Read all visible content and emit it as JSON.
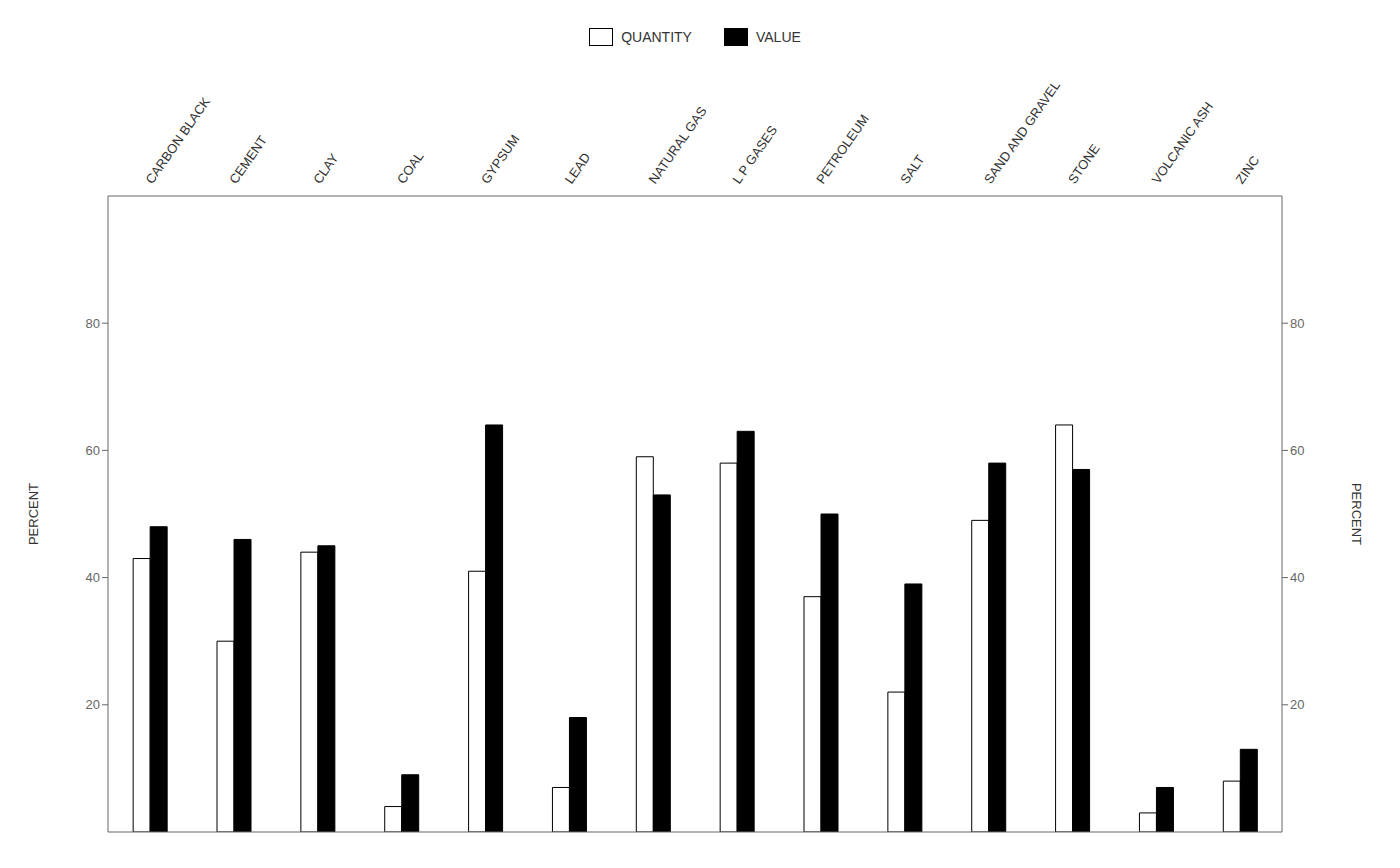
{
  "chart_data": {
    "type": "bar",
    "categories": [
      "CARBON BLACK",
      "CEMENT",
      "CLAY",
      "COAL",
      "GYPSUM",
      "LEAD",
      "NATURAL GAS",
      "L P GASES",
      "PETROLEUM",
      "SALT",
      "SAND AND GRAVEL",
      "STONE",
      "VOLCANIC ASH",
      "ZINC"
    ],
    "series": [
      {
        "name": "QUANTITY",
        "color": "white",
        "values": [
          43,
          30,
          44,
          4,
          41,
          7,
          59,
          58,
          37,
          22,
          49,
          64,
          3,
          8
        ]
      },
      {
        "name": "VALUE",
        "color": "black",
        "values": [
          48,
          46,
          45,
          9,
          64,
          18,
          53,
          63,
          50,
          39,
          58,
          57,
          7,
          13
        ]
      }
    ],
    "y_label": "PERCENT",
    "y2_label": "PERCENT",
    "ylim": [
      0,
      100
    ],
    "yticks": [
      20,
      40,
      60,
      80
    ],
    "y2lim": [
      0,
      100
    ],
    "y2ticks": [
      20,
      40,
      60,
      80
    ],
    "grid": false,
    "legend": "top"
  }
}
